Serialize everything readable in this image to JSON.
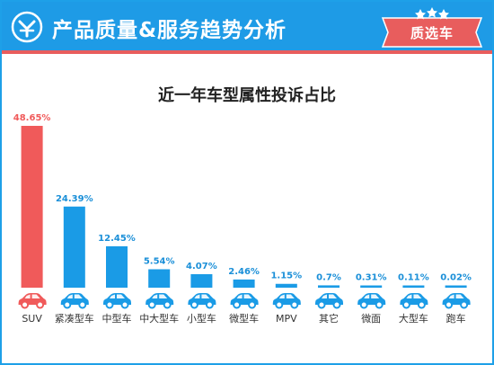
{
  "header": {
    "title": "产品质量&服务趋势分析",
    "badge": "质选车",
    "logo_icon": "brand-logo-icon",
    "badge_icon": "stars-badge-icon"
  },
  "colors": {
    "header_bg": "#1e9be6",
    "accent_red": "#e85d5d",
    "bar_blue": "#1a9be6",
    "highlight_red": "#f05a5a",
    "label_blue": "#1a8fd8"
  },
  "chart_data": {
    "type": "bar",
    "title": "近一年车型属性投诉占比",
    "xlabel": "",
    "ylabel": "",
    "categories": [
      "SUV",
      "紧凑型车",
      "中型车",
      "中大型车",
      "小型车",
      "微型车",
      "MPV",
      "其它",
      "微面",
      "大型车",
      "跑车"
    ],
    "values": [
      48.65,
      24.39,
      12.45,
      5.54,
      4.07,
      2.46,
      1.15,
      0.7,
      0.31,
      0.11,
      0.02
    ],
    "data_labels": [
      "48.65%",
      "24.39%",
      "12.45%",
      "5.54%",
      "4.07%",
      "2.46%",
      "1.15%",
      "0.7%",
      "0.31%",
      "0.11%",
      "0.02%"
    ],
    "highlight_index": 0,
    "ylim": [
      0,
      50
    ],
    "grid": false,
    "legend": "none",
    "category_icon": "car-icon"
  }
}
